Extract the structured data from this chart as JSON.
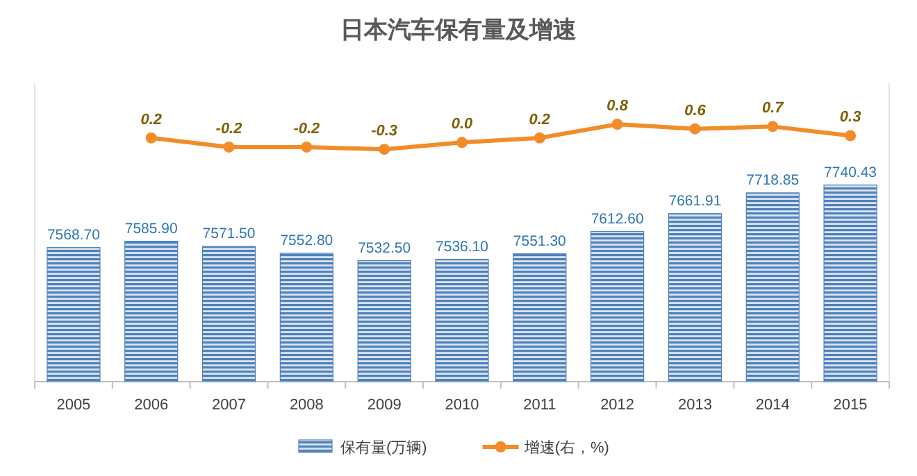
{
  "chart_data": {
    "type": "bar",
    "title": "日本汽车保有量及增速",
    "categories": [
      "2005",
      "2006",
      "2007",
      "2008",
      "2009",
      "2010",
      "2011",
      "2012",
      "2013",
      "2014",
      "2015"
    ],
    "ylim": [
      7200,
      8020
    ],
    "y2lim": [
      -10.5,
      2.6
    ],
    "tick_labels": "x",
    "legend": "bottom",
    "series": [
      {
        "name": "保有量(万辆)",
        "color": "#4f81bd",
        "values": [
          7568.7,
          7585.9,
          7571.5,
          7552.8,
          7532.5,
          7536.1,
          7551.3,
          7612.6,
          7661.91,
          7718.85,
          7740.43
        ],
        "value_labels": [
          "7568.70",
          "7585.90",
          "7571.50",
          "7552.80",
          "7532.50",
          "7536.10",
          "7551.30",
          "7612.60",
          "7661.91",
          "7718.85",
          "7740.43"
        ]
      },
      {
        "name": "增速(右，%)",
        "type": "line",
        "axis": "y2",
        "color": "#f28c28",
        "marker": "circle",
        "line_style": "solid",
        "values": [
          null,
          0.2,
          -0.2,
          -0.2,
          -0.3,
          0.0,
          0.2,
          0.8,
          0.6,
          0.7,
          0.3
        ],
        "value_labels": [
          null,
          "0.2",
          "-0.2",
          "-0.2",
          "-0.3",
          "0.0",
          "0.2",
          "0.8",
          "0.6",
          "0.7",
          "0.3"
        ]
      }
    ]
  }
}
